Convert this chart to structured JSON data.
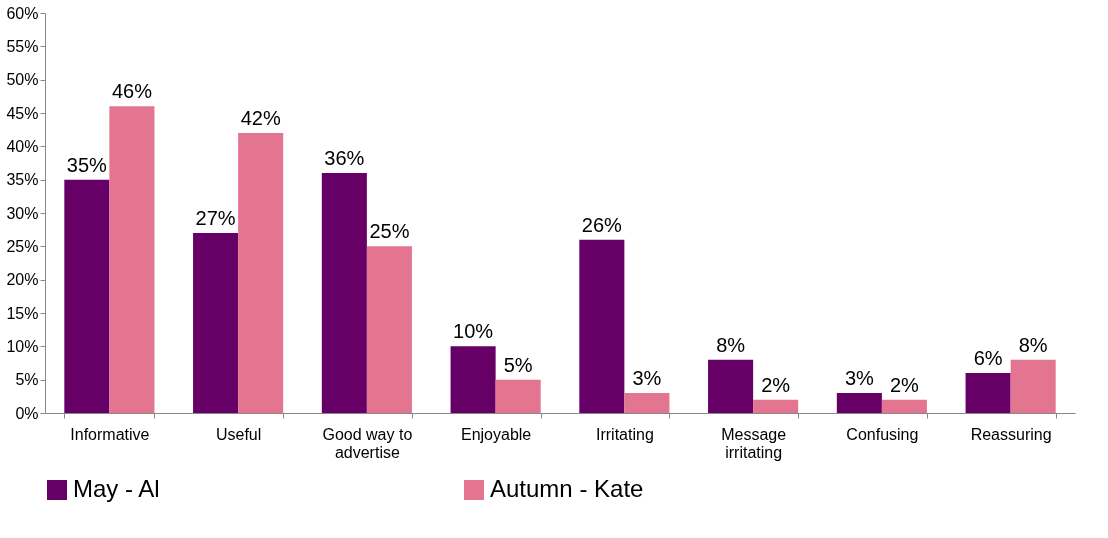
{
  "chart_data": {
    "type": "bar",
    "categories": [
      "Informative",
      "Useful",
      "Good way to\nadvertise",
      "Enjoyable",
      "Irritating",
      "Message\nirritating",
      "Confusing",
      "Reassuring"
    ],
    "series": [
      {
        "name": "May - Al",
        "color": "#660066",
        "values": [
          35,
          27,
          36,
          10,
          26,
          8,
          3,
          6
        ],
        "value_labels": [
          "35%",
          "27%",
          "36%",
          "10%",
          "26%",
          "8%",
          "3%",
          "6%"
        ]
      },
      {
        "name": "Autumn - Kate",
        "color": "#e37590",
        "values": [
          46,
          42,
          25,
          5,
          3,
          2,
          2,
          8
        ],
        "value_labels": [
          "46%",
          "42%",
          "25%",
          "5%",
          "3%",
          "2%",
          "2%",
          "8%"
        ]
      }
    ],
    "ylim": [
      0,
      60
    ],
    "yticks": [
      {
        "value": 0,
        "label": "0%"
      },
      {
        "value": 5,
        "label": "5%"
      },
      {
        "value": 10,
        "label": "10%"
      },
      {
        "value": 15,
        "label": "15%"
      },
      {
        "value": 20,
        "label": "20%"
      },
      {
        "value": 25,
        "label": "25%"
      },
      {
        "value": 30,
        "label": "30%"
      },
      {
        "value": 35,
        "label": "35%"
      },
      {
        "value": 40,
        "label": "40%"
      },
      {
        "value": 45,
        "label": "45%"
      },
      {
        "value": 50,
        "label": "50%"
      },
      {
        "value": 55,
        "label": "55%"
      },
      {
        "value": 60,
        "label": "60%"
      }
    ],
    "grid": false,
    "legend": "bottom"
  }
}
